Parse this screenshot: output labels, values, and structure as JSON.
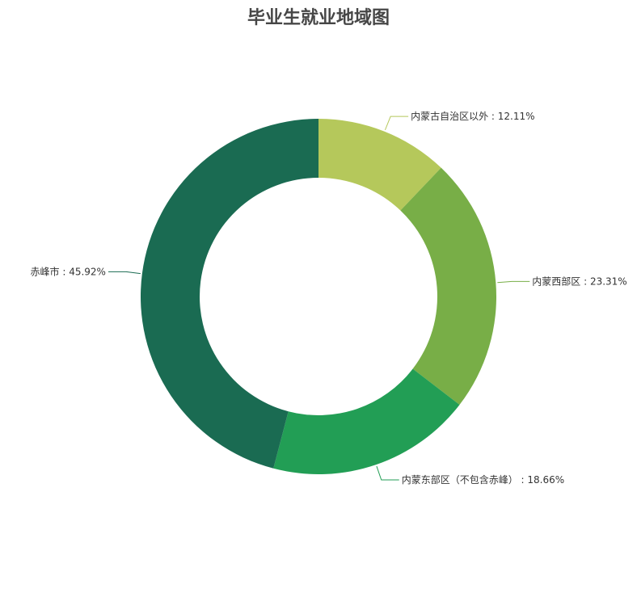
{
  "chart_data": {
    "type": "pie",
    "variant": "donut",
    "title": "毕业生就业地域图",
    "label_format": "{name} : {value}%",
    "slices": [
      {
        "name": "内蒙古自治区以外",
        "value": 12.11,
        "color": "#b5c85b"
      },
      {
        "name": "内蒙西部区",
        "value": 23.31,
        "color": "#78ae47"
      },
      {
        "name": "内蒙东部区（不包含赤峰）",
        "value": 18.66,
        "color": "#229e55"
      },
      {
        "name": "赤峰市",
        "value": 45.92,
        "color": "#1a6b52"
      }
    ]
  }
}
